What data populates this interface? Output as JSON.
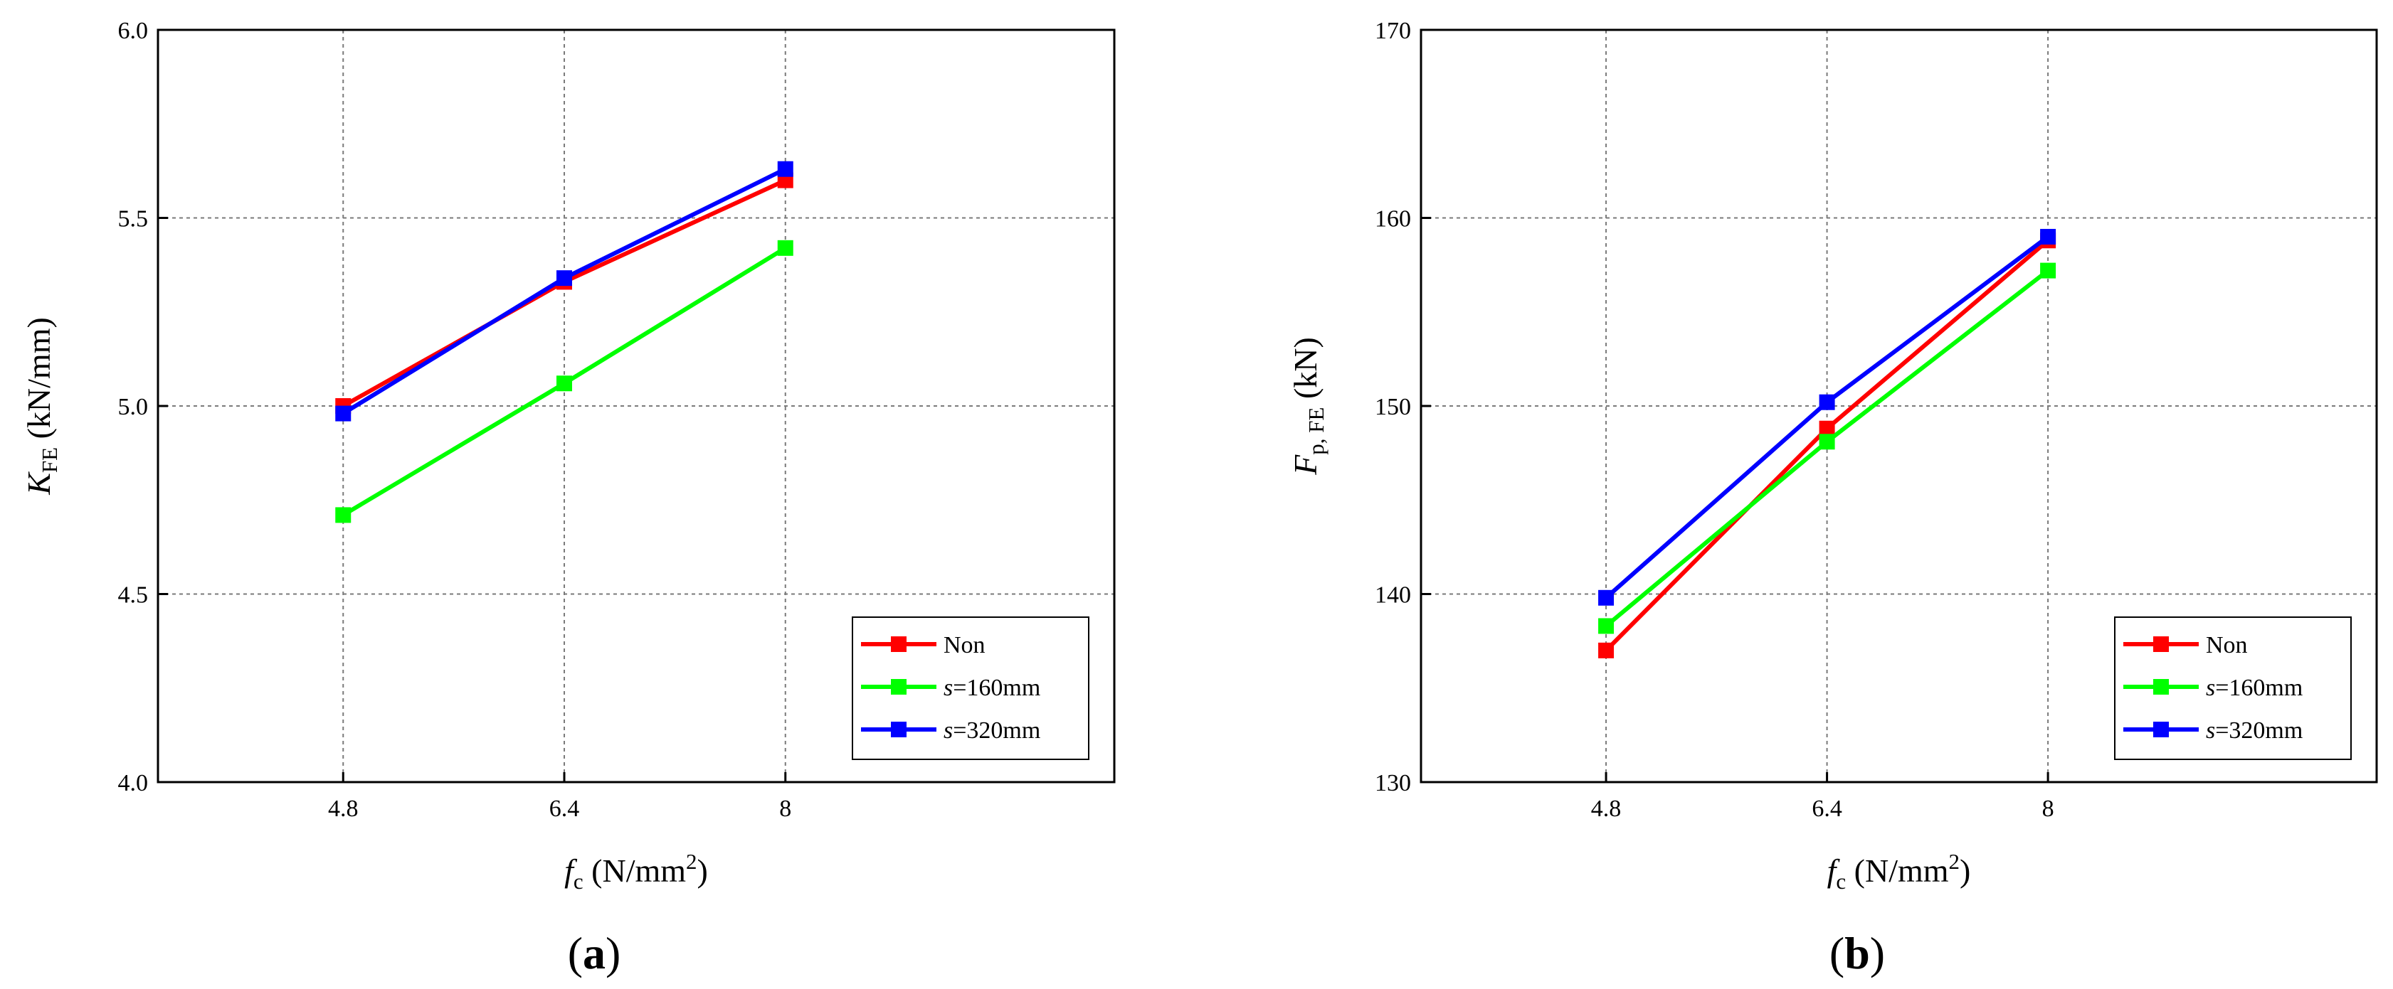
{
  "chart_data": [
    {
      "type": "line",
      "panel": "a",
      "panel_label": "a",
      "xlabel": {
        "var": "f",
        "sub": "c",
        "unit_pre": " (N/mm",
        "sup": "2",
        "unit_post": ")"
      },
      "ylabel": {
        "var": "K",
        "sub": "FE",
        "unit": " (kN/mm)"
      },
      "categories": [
        "4.8",
        "6.4",
        "8"
      ],
      "x": [
        4.8,
        6.4,
        8
      ],
      "xlim": [
        3.46,
        10.38
      ],
      "ylim": [
        4.0,
        6.0
      ],
      "yticks": [
        4.0,
        4.5,
        5.0,
        5.5,
        6.0
      ],
      "ytick_labels": [
        "4.0",
        "4.5",
        "5.0",
        "5.5",
        "6.0"
      ],
      "grid": true,
      "legend_position": "bottom-right",
      "series": [
        {
          "name": "Non",
          "italic_prefix": "",
          "rest": "Non",
          "color": "#ff0000",
          "values": [
            5.0,
            5.33,
            5.6
          ]
        },
        {
          "name": "s=160mm",
          "italic_prefix": "s",
          "rest": "=160mm",
          "color": "#00ff00",
          "values": [
            4.71,
            5.06,
            5.42
          ]
        },
        {
          "name": "s=320mm",
          "italic_prefix": "s",
          "rest": "=320mm",
          "color": "#0000ff",
          "values": [
            4.98,
            5.34,
            5.63
          ]
        }
      ]
    },
    {
      "type": "line",
      "panel": "b",
      "panel_label": "b",
      "xlabel": {
        "var": "f",
        "sub": "c",
        "unit_pre": " (N/mm",
        "sup": "2",
        "unit_post": ")"
      },
      "ylabel": {
        "var": "F",
        "sub": "p, FE",
        "unit": " (kN)"
      },
      "categories": [
        "4.8",
        "6.4",
        "8"
      ],
      "x": [
        4.8,
        6.4,
        8
      ],
      "xlim": [
        3.46,
        10.38
      ],
      "ylim": [
        130,
        170
      ],
      "yticks": [
        130,
        140,
        150,
        160,
        170
      ],
      "ytick_labels": [
        "130",
        "140",
        "150",
        "160",
        "170"
      ],
      "grid": true,
      "legend_position": "bottom-right",
      "series": [
        {
          "name": "Non",
          "italic_prefix": "",
          "rest": "Non",
          "color": "#ff0000",
          "values": [
            137.0,
            148.8,
            158.8
          ]
        },
        {
          "name": "s=160mm",
          "italic_prefix": "s",
          "rest": "=160mm",
          "color": "#00ff00",
          "values": [
            138.3,
            148.1,
            157.2
          ]
        },
        {
          "name": "s=320mm",
          "italic_prefix": "s",
          "rest": "=320mm",
          "color": "#0000ff",
          "values": [
            139.8,
            150.2,
            159.0
          ]
        }
      ]
    }
  ]
}
